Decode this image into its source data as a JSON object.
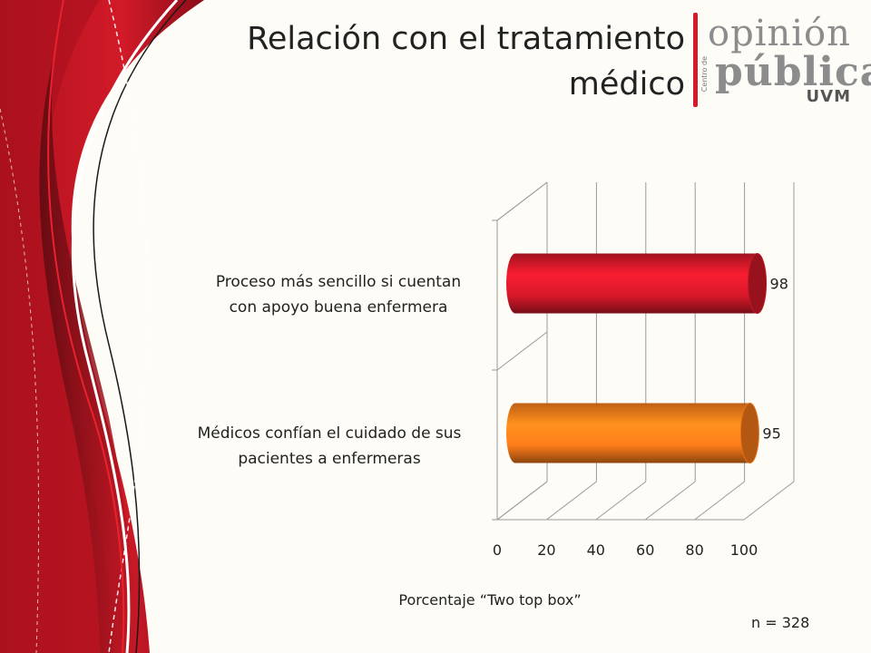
{
  "title": [
    "Relación con el tratamiento",
    "médico"
  ],
  "logo": {
    "word1": "opinión",
    "word2": "pública",
    "side_text": "Centro de",
    "uvm": "UVM",
    "accent": "#d8192a"
  },
  "chart_data": {
    "type": "bar",
    "orientation": "horizontal",
    "categories": [
      "Proceso más sencillo si cuentan con apoyo buena enfermera",
      "Médicos confían el cuidado de sus pacientes a enfermeras"
    ],
    "category_lines": [
      [
        "Proceso más sencillo si cuentan",
        "con apoyo buena enfermera"
      ],
      [
        "Médicos confían el cuidado de sus",
        "pacientes a enfermeras"
      ]
    ],
    "values": [
      98,
      95
    ],
    "data_labels": [
      "98",
      "95"
    ],
    "colors": [
      "#d8192a",
      "#ff7e1a"
    ],
    "xlim": [
      0,
      100
    ],
    "xticks": [
      "0",
      "20",
      "40",
      "60",
      "80",
      "100"
    ],
    "xlabel": "Porcentaje “Two top box”",
    "grid": true,
    "style": "3d-cylinder"
  },
  "note": "n = 328"
}
